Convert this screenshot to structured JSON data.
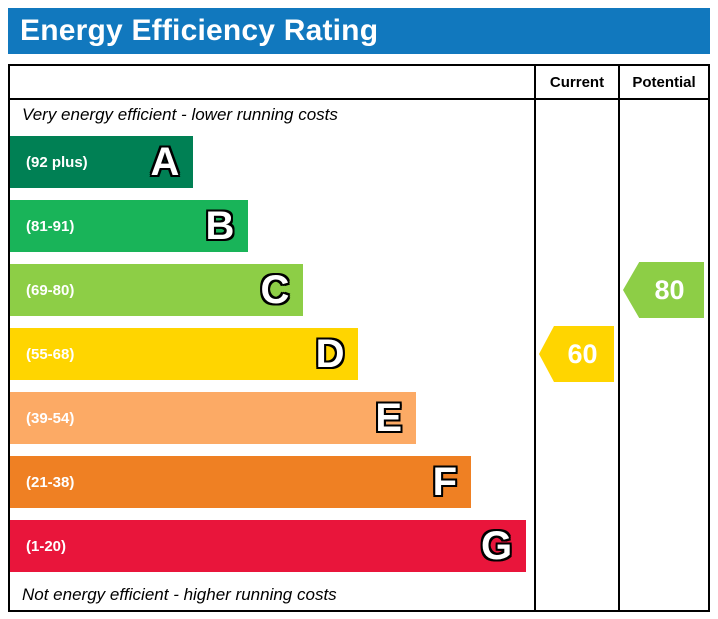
{
  "title": "Energy Efficiency Rating",
  "header": {
    "current_label": "Current",
    "potential_label": "Potential"
  },
  "notes": {
    "top": "Very energy efficient - lower running costs",
    "bottom": "Not energy efficient - higher running costs"
  },
  "colors": {
    "title_bar": "#1178be",
    "border": "#000000"
  },
  "chart_data": {
    "type": "bar",
    "title": "Energy Efficiency Rating",
    "bands": [
      {
        "letter": "A",
        "range_label": "(92 plus)",
        "range_min": 92,
        "range_max": 100,
        "color": "#008054",
        "width_pct": 35
      },
      {
        "letter": "B",
        "range_label": "(81-91)",
        "range_min": 81,
        "range_max": 91,
        "color": "#19b459",
        "width_pct": 45.5
      },
      {
        "letter": "C",
        "range_label": "(69-80)",
        "range_min": 69,
        "range_max": 80,
        "color": "#8dce46",
        "width_pct": 56
      },
      {
        "letter": "D",
        "range_label": "(55-68)",
        "range_min": 55,
        "range_max": 68,
        "color": "#ffd500",
        "width_pct": 66.5
      },
      {
        "letter": "E",
        "range_label": "(39-54)",
        "range_min": 39,
        "range_max": 54,
        "color": "#fcaa65",
        "width_pct": 77.5
      },
      {
        "letter": "F",
        "range_label": "(21-38)",
        "range_min": 21,
        "range_max": 38,
        "color": "#ef8023",
        "width_pct": 88
      },
      {
        "letter": "G",
        "range_label": "(1-20)",
        "range_min": 1,
        "range_max": 20,
        "color": "#e9153b",
        "width_pct": 98.5
      }
    ],
    "current": {
      "value": 60,
      "band": "D",
      "band_index": 3,
      "color": "#ffd500"
    },
    "potential": {
      "value": 80,
      "band": "C",
      "band_index": 2,
      "color": "#8dce46"
    }
  }
}
